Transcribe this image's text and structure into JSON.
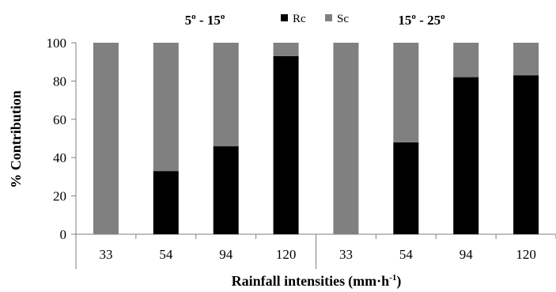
{
  "chart_data": {
    "type": "bar",
    "stacked": true,
    "percent_stacked": true,
    "ylabel": "% Contribution",
    "xlabel": "Rainfall intensities",
    "xlabel_unit_prefix": "(mm·h",
    "xlabel_unit_sup": "-1",
    "xlabel_unit_suffix": ")",
    "ylim": [
      0,
      100
    ],
    "yticks": [
      0,
      20,
      40,
      60,
      80,
      100
    ],
    "groups": [
      {
        "label_a": "5",
        "sup_a": "o",
        "label_mid": " - 15",
        "sup_b": "o"
      },
      {
        "label_a": "15",
        "sup_a": "o",
        "label_mid": " - 25",
        "sup_b": "o"
      }
    ],
    "categories": [
      "33",
      "54",
      "94",
      "120",
      "33",
      "54",
      "94",
      "120"
    ],
    "series": [
      {
        "name": "Rc",
        "color": "#000000",
        "values": [
          0,
          33,
          46,
          93,
          0,
          48,
          82,
          83
        ]
      },
      {
        "name": "Sc",
        "color": "#808080",
        "values": [
          100,
          67,
          54,
          7,
          100,
          52,
          18,
          17
        ]
      }
    ],
    "legend_position": "top-center",
    "grid": false
  }
}
